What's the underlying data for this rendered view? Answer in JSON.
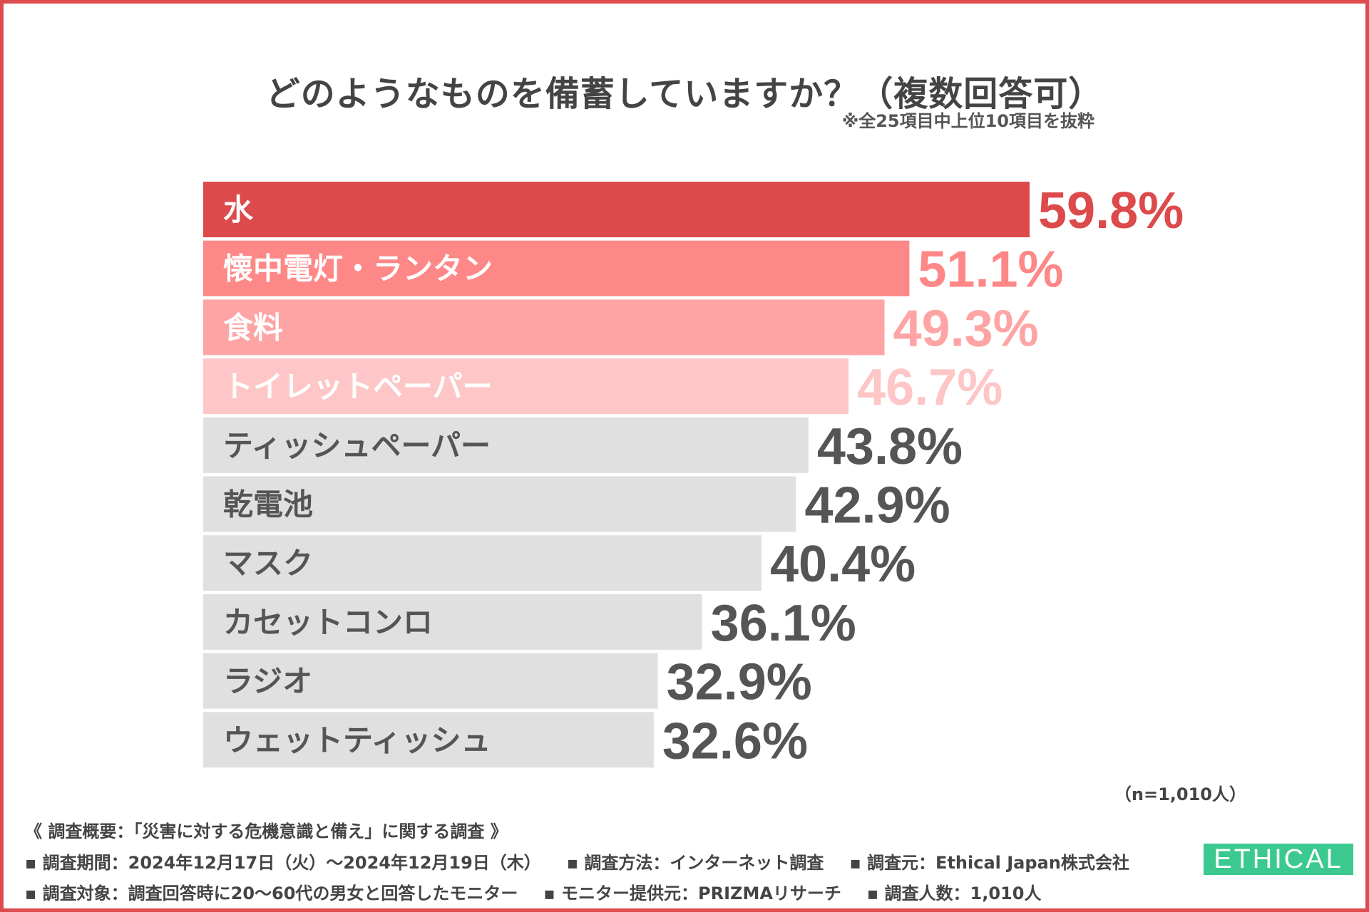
{
  "chart_data": {
    "type": "bar",
    "orientation": "horizontal",
    "title": "どのようなものを備蓄していますか？（複数回答可）",
    "subtitle": "※全25項目中上位10項目を抜粋",
    "categories": [
      "水",
      "懐中電灯・ランタン",
      "食料",
      "トイレットペーパー",
      "ティッシュペーパー",
      "乾電池",
      "マスク",
      "カセットコンロ",
      "ラジオ",
      "ウェットティッシュ"
    ],
    "values": [
      59.8,
      51.1,
      49.3,
      46.7,
      43.8,
      42.9,
      40.4,
      36.1,
      32.9,
      32.6
    ],
    "value_labels": [
      "59.8%",
      "51.1%",
      "49.3%",
      "46.7%",
      "43.8%",
      "42.9%",
      "40.4%",
      "36.1%",
      "32.9%",
      "32.6%"
    ],
    "bar_colors": [
      "#dc4a4b",
      "#fe8787",
      "#fea4a4",
      "#fec6c6",
      "#e0e0e0",
      "#e0e0e0",
      "#e0e0e0",
      "#e0e0e0",
      "#e0e0e0",
      "#e0e0e0"
    ],
    "label_colors": [
      "#ffffff",
      "#ffffff",
      "#ffffff",
      "#ffffff",
      "#555555",
      "#555555",
      "#555555",
      "#555555",
      "#555555",
      "#555555"
    ],
    "value_colors": [
      "#dc4a4b",
      "#fe8787",
      "#fea4a4",
      "#fec6c6",
      "#555555",
      "#555555",
      "#555555",
      "#555555",
      "#555555",
      "#555555"
    ],
    "xlim": [
      0,
      60
    ],
    "grid": false,
    "sample_size": "（n=1,010人）"
  },
  "footer": {
    "heading": "《 調査概要：「災害に対する危機意識と備え」に関する調査 》",
    "period": "▪ 調査期間：2024年12月17日（火）～2024年12月19日（木）",
    "method": "▪ 調査方法：インターネット調査",
    "source": "▪ 調査元：Ethical Japan株式会社",
    "target": "▪ 調査対象：調査回答時に20～60代の男女と回答したモニター",
    "provider": "▪ モニター提供元：PRIZMAリサーチ",
    "count": "▪ 調査人数：1,010人"
  },
  "logo": {
    "text": "ETHICAL"
  }
}
